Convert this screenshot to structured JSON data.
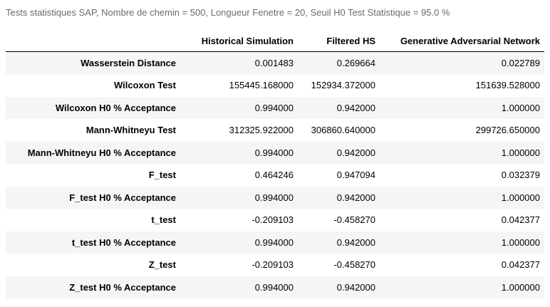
{
  "caption": "Tests statistiques SAP, Nombre de chemin = 500, Longueur Fenetre = 20, Seuil H0 Test Statistique = 95.0 %",
  "table": {
    "index_header": "",
    "columns": [
      "Historical Simulation",
      "Filtered HS",
      "Generative Adversarial Network"
    ],
    "rows": [
      {
        "label": "Wasserstein Distance",
        "values": [
          "0.001483",
          "0.269664",
          "0.022789"
        ]
      },
      {
        "label": "Wilcoxon Test",
        "values": [
          "155445.168000",
          "152934.372000",
          "151639.528000"
        ]
      },
      {
        "label": "Wilcoxon H0 % Acceptance",
        "values": [
          "0.994000",
          "0.942000",
          "1.000000"
        ]
      },
      {
        "label": "Mann-Whitneyu Test",
        "values": [
          "312325.922000",
          "306860.640000",
          "299726.650000"
        ]
      },
      {
        "label": "Mann-Whitneyu H0 % Acceptance",
        "values": [
          "0.994000",
          "0.942000",
          "1.000000"
        ]
      },
      {
        "label": "F_test",
        "values": [
          "0.464246",
          "0.947094",
          "0.032379"
        ]
      },
      {
        "label": "F_test H0 % Acceptance",
        "values": [
          "0.994000",
          "0.942000",
          "1.000000"
        ]
      },
      {
        "label": "t_test",
        "values": [
          "-0.209103",
          "-0.458270",
          "0.042377"
        ]
      },
      {
        "label": "t_test H0 % Acceptance",
        "values": [
          "0.994000",
          "0.942000",
          "1.000000"
        ]
      },
      {
        "label": "Z_test",
        "values": [
          "-0.209103",
          "-0.458270",
          "0.042377"
        ]
      },
      {
        "label": "Z_test H0 % Acceptance",
        "values": [
          "0.994000",
          "0.942000",
          "1.000000"
        ]
      }
    ]
  },
  "colors": {
    "caption": "#6b6b6b",
    "stripe": "#f5f5f5",
    "header_rule": "#000000"
  }
}
